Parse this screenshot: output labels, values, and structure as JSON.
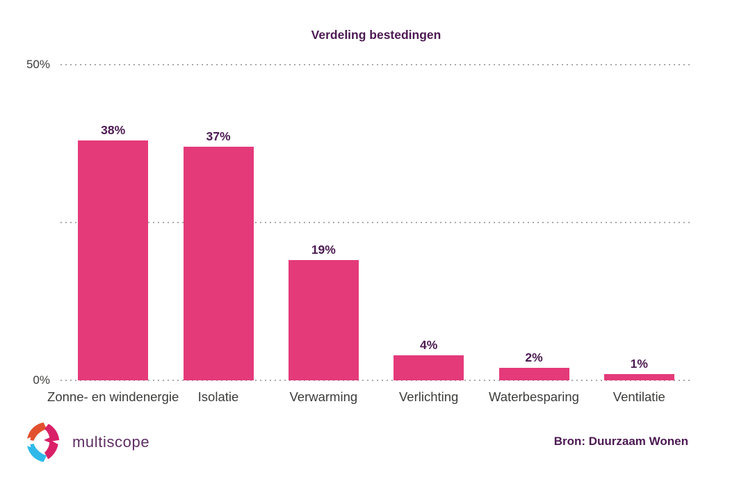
{
  "chart_data": {
    "type": "bar",
    "title": "Verdeling bestedingen",
    "categories": [
      "Zonne- en windenergie",
      "Isolatie",
      "Verwarming",
      "Verlichting",
      "Waterbesparing",
      "Ventilatie"
    ],
    "values": [
      38,
      37,
      19,
      4,
      2,
      1
    ],
    "value_labels": [
      "38%",
      "37%",
      "19%",
      "4%",
      "2%",
      "1%"
    ],
    "xlabel": "",
    "ylabel": "",
    "ylim": [
      0,
      50
    ],
    "yticks": [
      {
        "value": 50,
        "label": "50%"
      },
      {
        "value": 25,
        "label": ""
      },
      {
        "value": 0,
        "label": "0%"
      }
    ],
    "grid": "horizontal-dotted",
    "legend": "none",
    "bar_color": "#e43a7a",
    "value_label_color": "#4c1a52",
    "title_color": "#4c1a52",
    "axis_label_color": "#3c3c3b",
    "gridline_color": "#a8a8a8"
  },
  "footer": {
    "logo_text": "multiscope",
    "source": "Bron: Duurzaam Wonen",
    "logo_colors": {
      "orange": "#e2502e",
      "pink": "#d92168",
      "cyan": "#2fb9e9",
      "wordmark": "#5e2f63"
    }
  }
}
